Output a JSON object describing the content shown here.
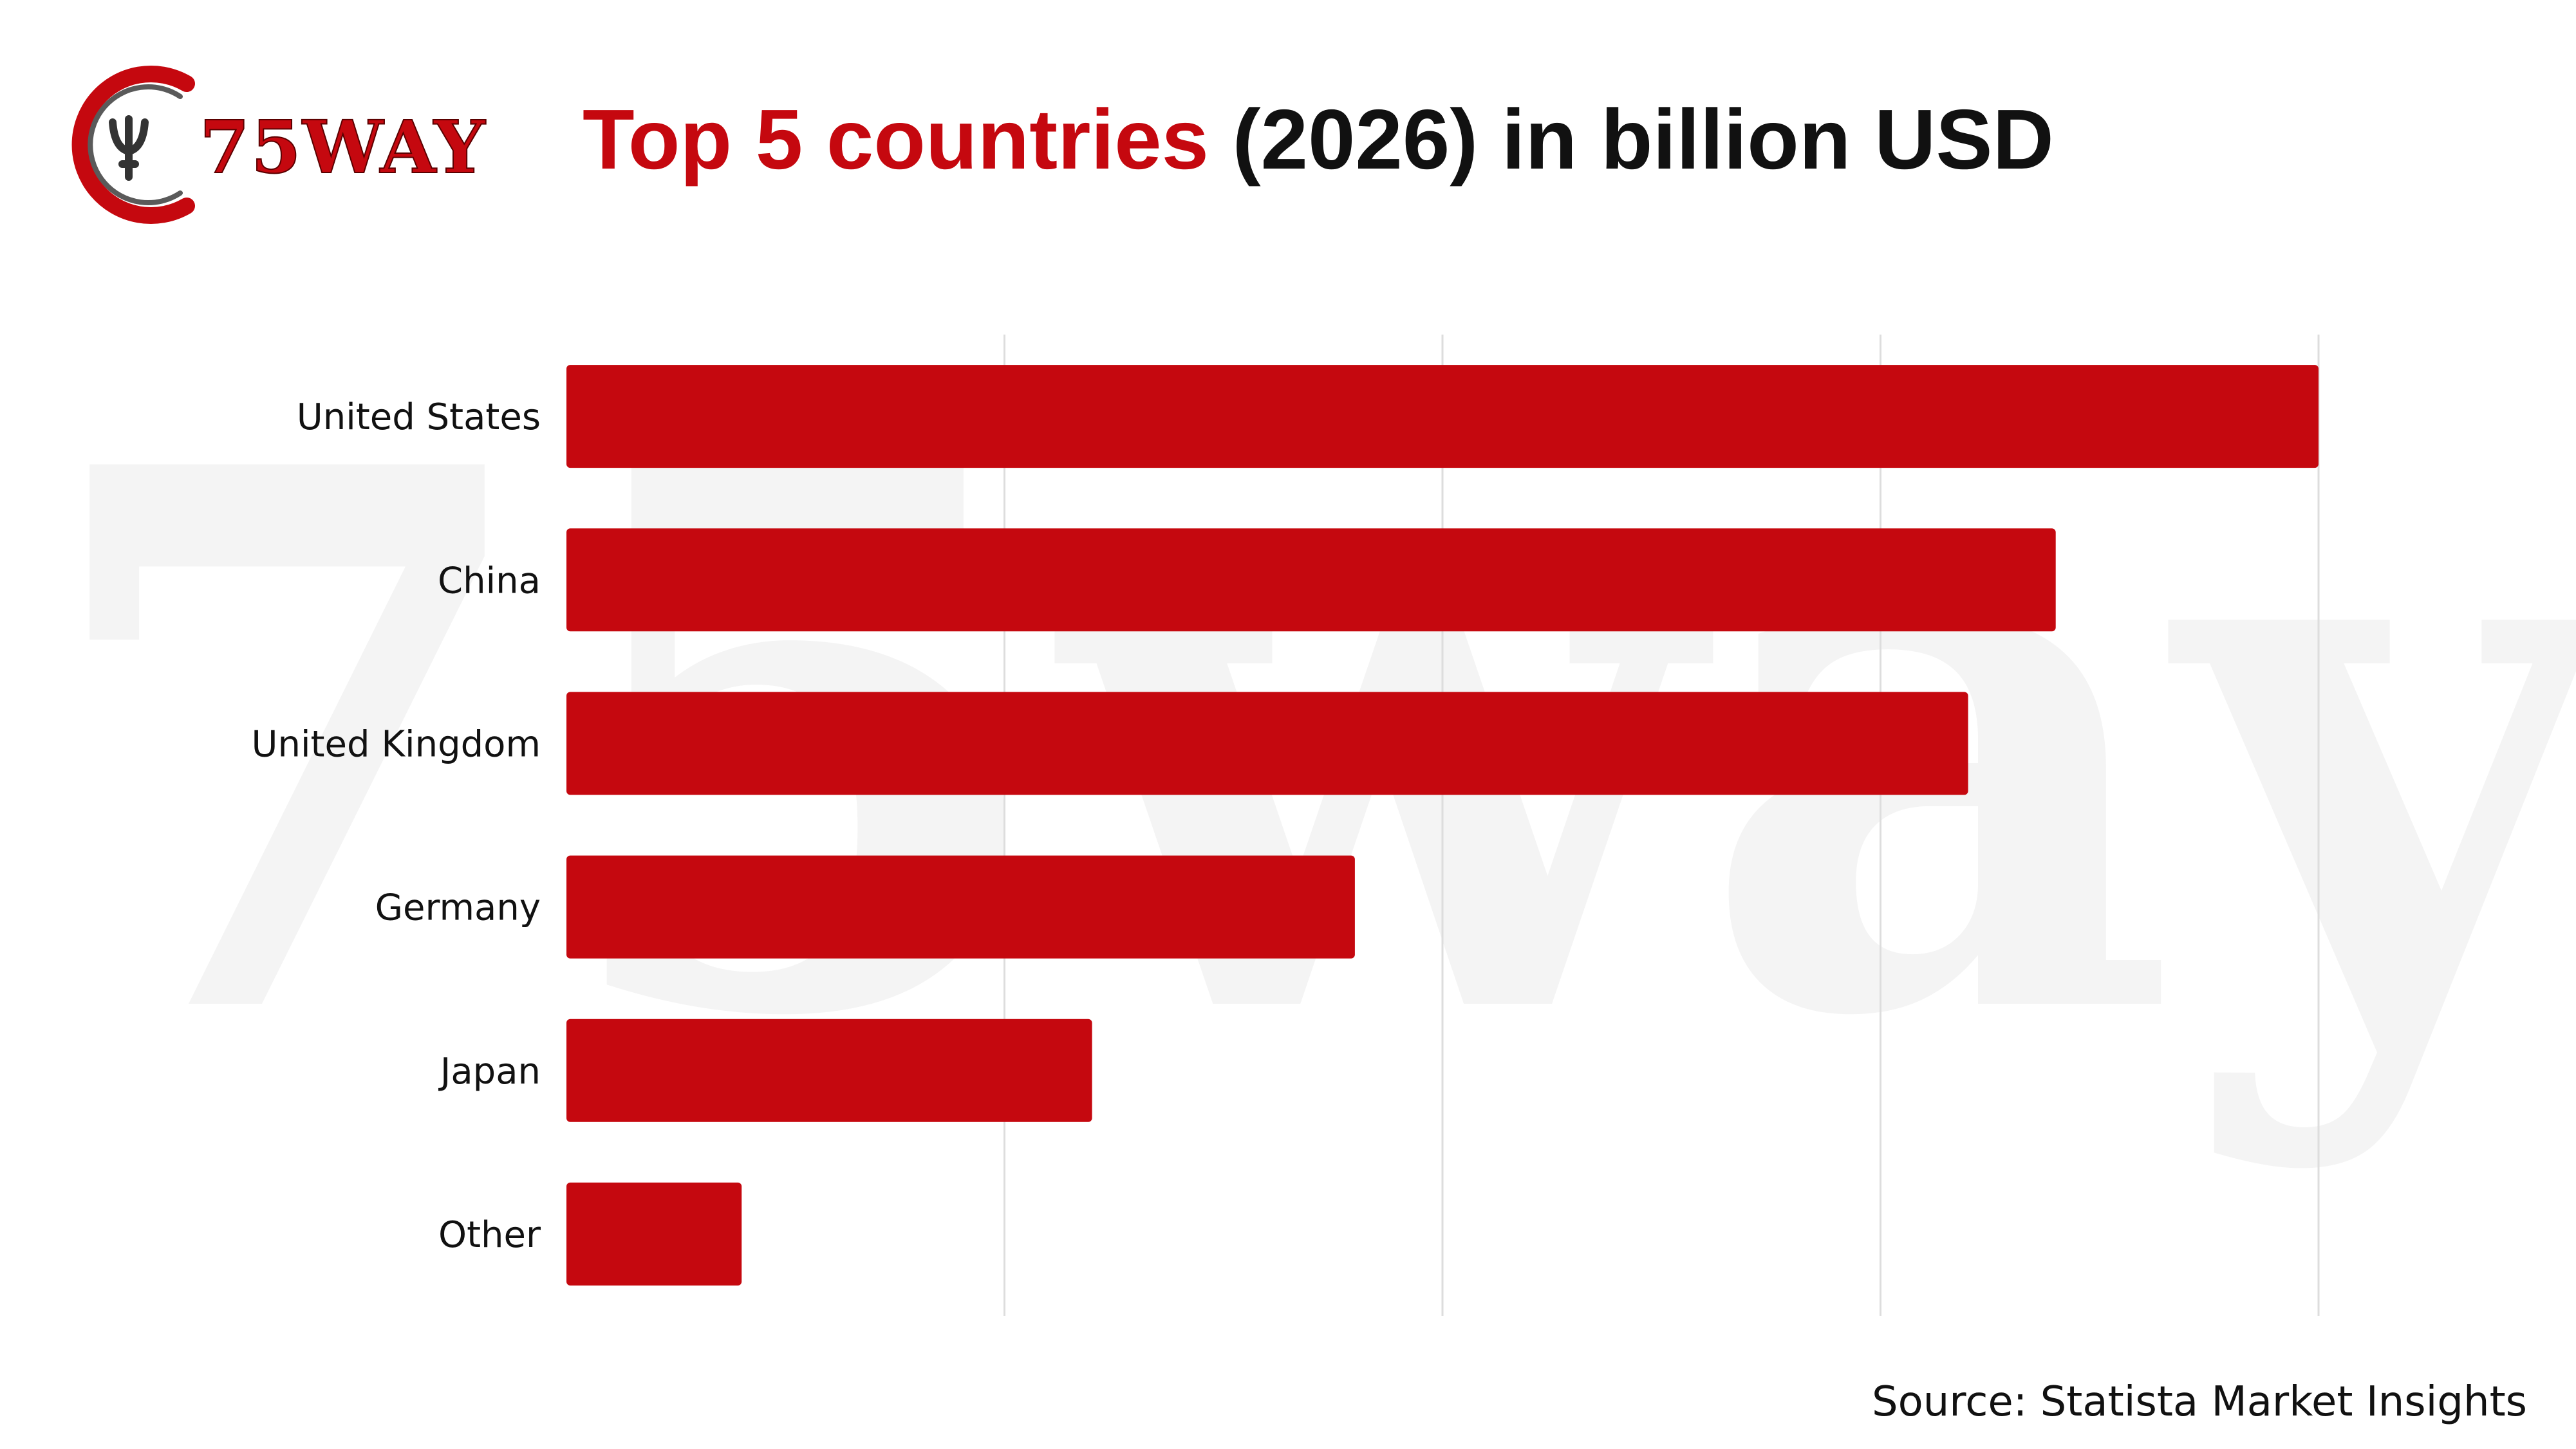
{
  "logo": {
    "text": "75WAY",
    "icon": "trident-swoosh-logo-icon"
  },
  "watermark": {
    "text": "75way"
  },
  "header": {
    "title_highlight": "Top 5 countries",
    "title_rest": " (2026) in billion USD"
  },
  "colors": {
    "accent": "#C5080F",
    "bar": "#C5080F",
    "text": "#111111",
    "grid": "#DDDDDD",
    "watermark": "#F4F4F4"
  },
  "footer": {
    "source": "Source: Statista Market Insights"
  },
  "chart_data": {
    "type": "bar",
    "orientation": "horizontal",
    "title": "Top 5 countries (2026) in billion USD",
    "xlabel": "",
    "ylabel": "",
    "categories": [
      "United States",
      "China",
      "United Kingdom",
      "Germany",
      "Japan",
      "Other"
    ],
    "values": [
      100,
      85,
      80,
      45,
      30,
      10
    ],
    "xlim": [
      0,
      100
    ],
    "grid": true,
    "legend": "none"
  }
}
